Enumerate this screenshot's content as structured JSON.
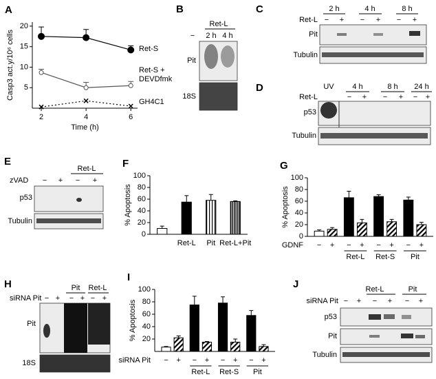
{
  "chart_data": [
    {
      "letter": "A",
      "type": "line",
      "y_label": "Casp3 act.y/10⁶ cells",
      "x_label": "Time (h)",
      "x": [
        2,
        4,
        6
      ],
      "xlim": [
        1.6,
        6.3
      ],
      "xticks": [
        2,
        4,
        6
      ],
      "ylim": [
        0,
        21
      ],
      "yticks": [
        5,
        10,
        15,
        20
      ],
      "series": [
        {
          "name": "Ret-S",
          "color": "#000000",
          "marker": "filled",
          "values": [
            17.5,
            17.2,
            14.2
          ],
          "errors": [
            2.3,
            2.0,
            1.0
          ]
        },
        {
          "name": "Ret-S +\nDEVDfmk",
          "color": "#555555",
          "marker": "open",
          "values": [
            8.7,
            5.0,
            5.5
          ],
          "errors": [
            0.8,
            1.3,
            1.0
          ]
        },
        {
          "name": "GH4C1",
          "color": "#000000",
          "marker": "x",
          "dash": "dotted",
          "values": [
            0.3,
            1.8,
            0.5
          ]
        }
      ]
    },
    {
      "letter": "F",
      "type": "bar",
      "y_label": "% Apoptosis",
      "categories": [
        null,
        "Ret-L",
        "Pit",
        "Ret-L+Pit"
      ],
      "values": [
        10,
        55,
        58,
        56
      ],
      "errors": [
        4,
        11,
        10,
        1
      ],
      "fills": [
        "white",
        "black",
        "vstripe",
        "vdense"
      ],
      "ylim": [
        0,
        100
      ],
      "yticks": [
        0,
        20,
        40,
        60,
        80,
        100
      ]
    },
    {
      "letter": "G",
      "type": "bar",
      "y_label": "% Apoptosis",
      "x_label": "GDNF",
      "categories": [
        "−",
        "+",
        "−",
        "+",
        "−",
        "+",
        "−",
        "+"
      ],
      "groups": [
        "Ret-L",
        "Ret-S",
        "Pit"
      ],
      "values": [
        9,
        12,
        66,
        23,
        68,
        25,
        62,
        20
      ],
      "errors": [
        2,
        3,
        11,
        6,
        3,
        4,
        5,
        4
      ],
      "fills": [
        "white",
        "hatch",
        "black",
        "hatch",
        "black",
        "hatch",
        "black",
        "hatch"
      ],
      "ylim": [
        0,
        100
      ],
      "yticks": [
        0,
        20,
        40,
        60,
        80,
        100
      ]
    },
    {
      "letter": "I",
      "type": "bar",
      "y_label": "% Apoptosis",
      "x_label": "siRNA Pit",
      "categories": [
        "−",
        "+",
        "−",
        "+",
        "−",
        "+",
        "−",
        "+"
      ],
      "groups": [
        "Ret-L",
        "Ret-S",
        "Pit"
      ],
      "values": [
        7,
        22,
        75,
        15,
        78,
        15,
        58,
        8
      ],
      "errors": [
        1,
        3,
        14,
        1,
        10,
        5,
        8,
        3
      ],
      "fills": [
        "white",
        "hatch",
        "black",
        "hatch",
        "black",
        "hatch",
        "black",
        "hatch"
      ],
      "ylim": [
        0,
        100
      ],
      "yticks": [
        20,
        40,
        60,
        80,
        100
      ]
    }
  ],
  "blots": {
    "B": {
      "letter": "B",
      "header": "Ret-L",
      "lanes": [
        "−",
        "2 h",
        "4 h"
      ],
      "rows": [
        "Pit",
        "18S"
      ]
    },
    "C": {
      "letter": "C",
      "times": [
        "2 h",
        "4 h",
        "8 h"
      ],
      "treatment": "Ret-L",
      "lanes": [
        "−",
        "+",
        "−",
        "+",
        "−",
        "+"
      ],
      "rows": [
        "Pit",
        "Tubulin"
      ]
    },
    "D": {
      "letter": "D",
      "times": [
        "UV",
        "4 h",
        "8 h",
        "24 h"
      ],
      "treatment": "Ret-L",
      "lanes": [
        "−",
        "+",
        "−",
        "+",
        "−",
        "+"
      ],
      "rows": [
        "p53",
        "Tubulin"
      ]
    },
    "E": {
      "letter": "E",
      "header": "Ret-L",
      "treatment": "zVAD",
      "lanes": [
        "−",
        "+",
        "−",
        "+"
      ],
      "rows": [
        "p53",
        "Tubulin"
      ]
    },
    "H": {
      "letter": "H",
      "headers": [
        "Pit",
        "Ret-L"
      ],
      "treatment": "siRNA Pit",
      "lanes": [
        "−",
        "+",
        "−",
        "+",
        "−",
        "+"
      ],
      "rows": [
        "Pit",
        "18S"
      ]
    },
    "J": {
      "letter": "J",
      "headers": [
        "Ret-L",
        "Pit"
      ],
      "treatment": "siRNA Pit",
      "lanes": [
        "−",
        "+",
        "−",
        "+",
        "−",
        "+"
      ],
      "rows": [
        "p53",
        "Pit",
        "Tubulin"
      ]
    }
  }
}
